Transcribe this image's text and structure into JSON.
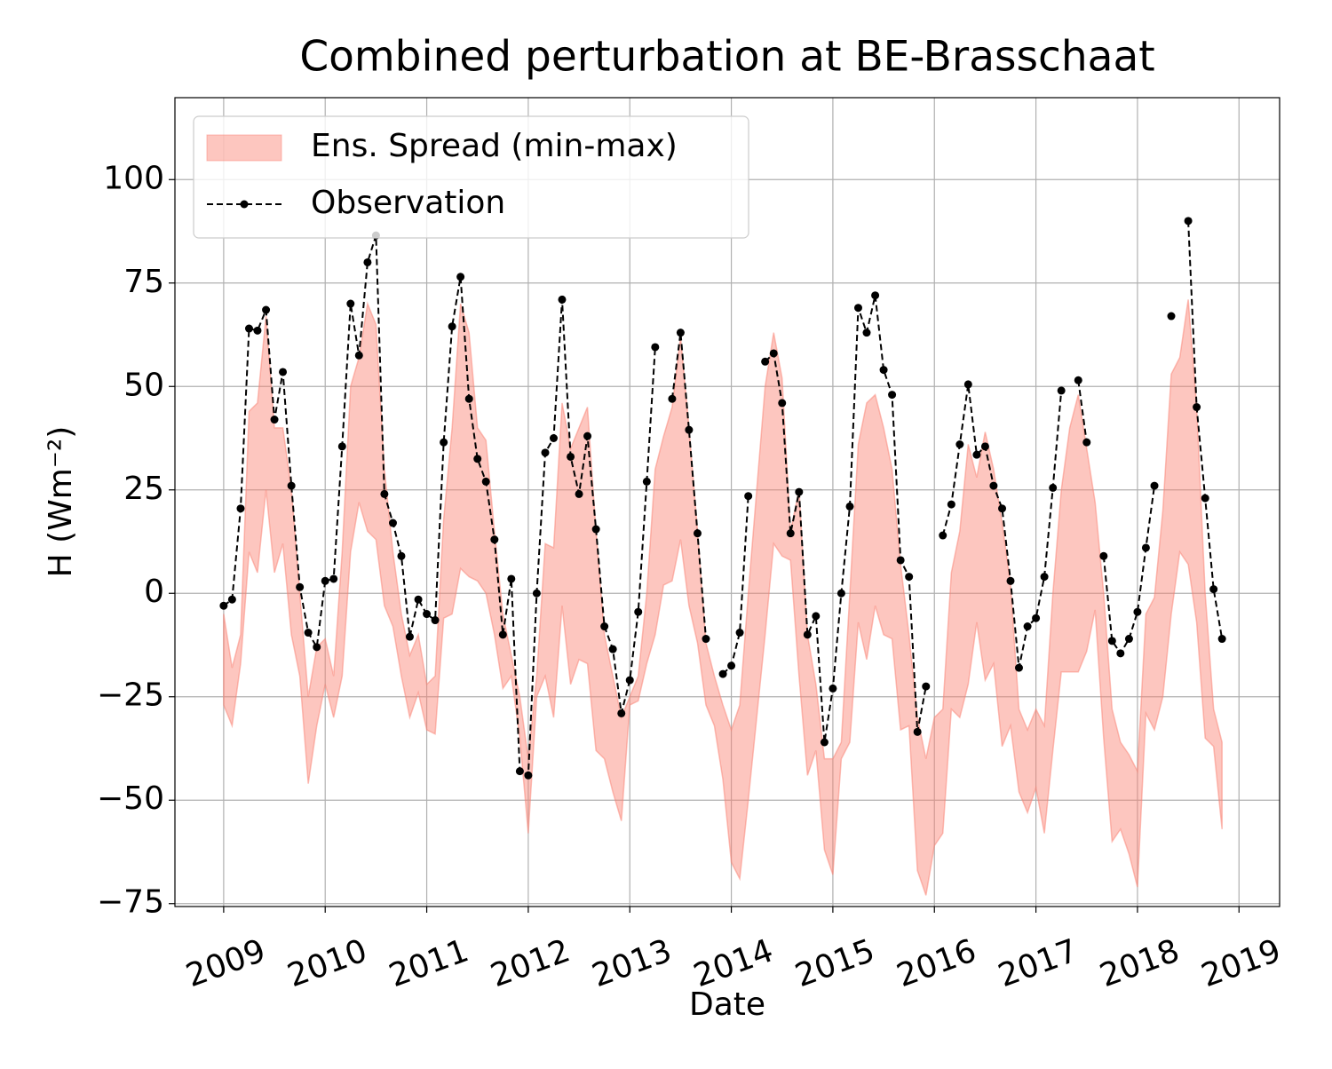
{
  "chart_data": {
    "type": "line",
    "title": "Combined perturbation at BE-Brasschaat",
    "xlabel": "Date",
    "ylabel": "H  (Wm⁻²)",
    "xlim": [
      2008.52,
      2019.4
    ],
    "xticks": [
      2009,
      2010,
      2011,
      2012,
      2013,
      2014,
      2015,
      2016,
      2017,
      2018,
      2019
    ],
    "ylim": [
      -75.7,
      119.8
    ],
    "yticks": [
      {
        "value": -75,
        "label": "−75"
      },
      {
        "value": -50,
        "label": "−50"
      },
      {
        "value": -25,
        "label": "−25"
      },
      0,
      25,
      50,
      75,
      100
    ],
    "grid": true,
    "legend": "upper left",
    "x": [
      2009.0,
      2009.083,
      2009.167,
      2009.25,
      2009.333,
      2009.417,
      2009.5,
      2009.583,
      2009.667,
      2009.75,
      2009.833,
      2009.917,
      2010.0,
      2010.083,
      2010.167,
      2010.25,
      2010.333,
      2010.417,
      2010.5,
      2010.583,
      2010.667,
      2010.75,
      2010.833,
      2010.917,
      2011.0,
      2011.083,
      2011.167,
      2011.25,
      2011.333,
      2011.417,
      2011.5,
      2011.583,
      2011.667,
      2011.75,
      2011.833,
      2011.917,
      2012.0,
      2012.083,
      2012.167,
      2012.25,
      2012.333,
      2012.417,
      2012.5,
      2012.583,
      2012.667,
      2012.75,
      2012.833,
      2012.917,
      2013.0,
      2013.083,
      2013.167,
      2013.25,
      2013.333,
      2013.417,
      2013.5,
      2013.583,
      2013.667,
      2013.75,
      2013.833,
      2013.917,
      2014.0,
      2014.083,
      2014.167,
      2014.25,
      2014.333,
      2014.417,
      2014.5,
      2014.583,
      2014.667,
      2014.75,
      2014.833,
      2014.917,
      2015.0,
      2015.083,
      2015.167,
      2015.25,
      2015.333,
      2015.417,
      2015.5,
      2015.583,
      2015.667,
      2015.75,
      2015.833,
      2015.917,
      2016.0,
      2016.083,
      2016.167,
      2016.25,
      2016.333,
      2016.417,
      2016.5,
      2016.583,
      2016.667,
      2016.75,
      2016.833,
      2016.917,
      2017.0,
      2017.083,
      2017.167,
      2017.25,
      2017.333,
      2017.417,
      2017.5,
      2017.583,
      2017.667,
      2017.75,
      2017.833,
      2017.917,
      2018.0,
      2018.083,
      2018.167,
      2018.25,
      2018.333,
      2018.417,
      2018.5,
      2018.583,
      2018.667,
      2018.75,
      2018.833
    ],
    "series": [
      {
        "name": "Ens. Spread (min-max)",
        "kind": "band",
        "color": "#fa8072",
        "upper": [
          -5,
          -18,
          -10,
          44,
          46,
          67,
          40,
          40,
          25,
          0,
          -25,
          -13,
          -11,
          -20,
          10,
          50,
          57,
          70,
          65,
          30,
          10,
          -5,
          -15,
          -10,
          -22,
          -20,
          18,
          40,
          70,
          63,
          40,
          37,
          15,
          -5,
          -15,
          -25,
          -40,
          -20,
          12,
          11,
          46,
          35,
          40,
          45,
          15,
          -10,
          -20,
          -30,
          -25,
          -20,
          0,
          30,
          38,
          45,
          62,
          40,
          15,
          -12,
          -20,
          -27,
          -33,
          -27,
          0,
          25,
          50,
          63,
          52,
          15,
          25,
          -10,
          -22,
          -40,
          -40,
          -36,
          0,
          36,
          46,
          48,
          40,
          30,
          7,
          -10,
          -30,
          -40,
          -30,
          -28,
          5,
          15,
          36,
          28,
          39,
          30,
          17,
          2,
          -28,
          -33,
          -28,
          -32,
          0,
          25,
          40,
          48,
          35,
          22,
          0,
          -28,
          -36,
          -39,
          -43,
          -5,
          -1,
          20,
          53,
          57,
          71,
          45,
          0,
          -28,
          -36
        ],
        "lower": [
          -27,
          -32,
          -17,
          10,
          5,
          25,
          5,
          12,
          -10,
          -20,
          -46,
          -32,
          -22,
          -30,
          -20,
          10,
          22,
          15,
          13,
          -3,
          -8,
          -20,
          -30,
          -24,
          -33,
          -34,
          -6,
          -5,
          6,
          4,
          3,
          0,
          -10,
          -23,
          -20,
          -35,
          -58,
          -25,
          -20,
          -30,
          -3,
          -22,
          -16,
          -17,
          -38,
          -40,
          -48,
          -55,
          -27,
          -26,
          -17,
          -10,
          2,
          3,
          13,
          -3,
          -12,
          -27,
          -32,
          -45,
          -65,
          -69,
          -50,
          -30,
          -10,
          12,
          9,
          8,
          -20,
          -44,
          -38,
          -62,
          -68,
          -40,
          -36,
          -7,
          -16,
          -3,
          -10,
          -11,
          -33,
          -32,
          -67,
          -73,
          -61,
          -58,
          -28,
          -30,
          -22,
          -7,
          -21,
          -17,
          -37,
          -32,
          -48,
          -53,
          -47,
          -58,
          -38,
          -19,
          -19,
          -19,
          -14,
          -4,
          -35,
          -60,
          -57,
          -63,
          -71,
          -29,
          -33,
          -25,
          -5,
          10,
          7,
          -7,
          -35,
          -37,
          -57
        ]
      },
      {
        "name": "Observation",
        "kind": "line",
        "color": "#000000",
        "values": [
          -3,
          -1.5,
          20.5,
          64,
          63.5,
          68.5,
          42,
          53.5,
          26,
          1.5,
          -9.5,
          -13,
          3,
          3.5,
          35.5,
          70,
          57.5,
          80,
          86.5,
          24,
          17,
          9,
          -10.5,
          -1.5,
          -5,
          -6.5,
          36.5,
          64.5,
          76.5,
          47,
          32.5,
          27,
          13,
          -10,
          3.5,
          -43,
          -44,
          0,
          34,
          37.5,
          71,
          33,
          24,
          38,
          15.5,
          -8,
          -13.5,
          -29,
          -21,
          -4.5,
          27,
          59.5,
          null,
          47,
          63,
          39.5,
          14.5,
          -11,
          null,
          -19.5,
          -17.5,
          -9.5,
          23.5,
          null,
          56,
          58,
          46,
          14.5,
          24.5,
          -10,
          -5.5,
          -36,
          -23,
          0,
          21,
          69,
          63,
          72,
          54,
          48,
          8,
          4,
          -33.5,
          -22.5,
          null,
          14,
          21.5,
          36,
          50.5,
          33.5,
          35.5,
          26,
          20.5,
          3,
          -18,
          -8,
          -6,
          4,
          25.5,
          49,
          null,
          51.5,
          36.5,
          null,
          9,
          -11.5,
          -14.5,
          -11,
          -4.5,
          11,
          26,
          null,
          67,
          null,
          90,
          45,
          23,
          1,
          -11
        ]
      }
    ]
  }
}
